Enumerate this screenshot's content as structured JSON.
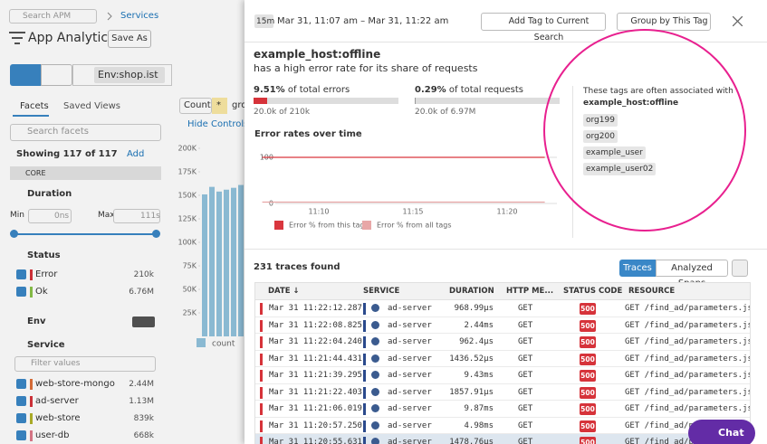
{
  "header": {
    "search_placeholder": "Search APM",
    "breadcrumb": "Services",
    "title": "App Analytics",
    "save_as": "Save As"
  },
  "query": "Env:shop.ist",
  "sidebar": {
    "tabs": [
      "Facets",
      "Saved Views"
    ],
    "search_placeholder": "Search facets",
    "showing": "Showing 117 of 117",
    "add": "Add",
    "core": "CORE",
    "duration": {
      "title": "Duration",
      "min_label": "Min",
      "min_value": "0ns",
      "max_label": "Max",
      "max_value": "111s"
    },
    "status": {
      "title": "Status",
      "items": [
        {
          "label": "Error",
          "count": "210k",
          "color": "#d6333a"
        },
        {
          "label": "Ok",
          "count": "6.76M",
          "color": "#8bc34a"
        }
      ]
    },
    "env": {
      "title": "Env"
    },
    "service": {
      "title": "Service",
      "filter_placeholder": "Filter values",
      "items": [
        {
          "label": "web-store-mongo",
          "count": "2.44M",
          "color": "#e0713a"
        },
        {
          "label": "ad-server",
          "count": "1.13M",
          "color": "#d6333a"
        },
        {
          "label": "web-store",
          "count": "839k",
          "color": "#b3b42a"
        },
        {
          "label": "user-db",
          "count": "668k",
          "color": "#e07b8c"
        }
      ]
    }
  },
  "controls": {
    "measure": "Count",
    "star": "*",
    "group": "gro",
    "hide_controls": "Hide Controls"
  },
  "chart_data": [
    {
      "type": "bar",
      "ylim": [
        0,
        200000
      ],
      "yticks": [
        {
          "value": 25000,
          "label": "25K"
        },
        {
          "value": 50000,
          "label": "50K"
        },
        {
          "value": 75000,
          "label": "75K"
        },
        {
          "value": 100000,
          "label": "100K"
        },
        {
          "value": 125000,
          "label": "125K"
        },
        {
          "value": 150000,
          "label": "150K"
        },
        {
          "value": 175000,
          "label": "175K"
        },
        {
          "value": 200000,
          "label": "200K"
        }
      ],
      "series": [
        {
          "name": "count",
          "color": "#92c3de",
          "values": [
            151000,
            159000,
            154000,
            156000,
            158000,
            161000,
            162000
          ]
        }
      ]
    },
    {
      "type": "line",
      "title": "Error rates over time",
      "x": [
        "11:07",
        "11:08",
        "11:09",
        "11:10",
        "11:11",
        "11:12",
        "11:13",
        "11:14",
        "11:15",
        "11:16",
        "11:17",
        "11:18",
        "11:19",
        "11:20",
        "11:21",
        "11:22"
      ],
      "xticks": [
        "11:10",
        "11:15",
        "11:20"
      ],
      "ylim": [
        0,
        100
      ],
      "yticks": [
        0,
        100
      ],
      "series": [
        {
          "name": "Error % from this tag",
          "color": "#d9363e",
          "values": [
            100,
            100,
            100,
            100,
            100,
            100,
            100,
            100,
            100,
            100,
            100,
            100,
            100,
            100,
            100,
            100
          ]
        },
        {
          "name": "Error % from all tags",
          "color": "#e8a7a7",
          "values": [
            3,
            3,
            3,
            3,
            3,
            3,
            3,
            3,
            3,
            3,
            3,
            3,
            3,
            3,
            3,
            3
          ]
        }
      ]
    }
  ],
  "panel": {
    "time_badge": "15m",
    "time_range": "Mar 31, 11:07 am – Mar 31, 11:22 am",
    "add_tag": "Add Tag to Current Search",
    "group_by": "Group by This Tag",
    "tag": "example_host:offline",
    "subtitle": "has a high error rate for its share of requests",
    "stats": [
      {
        "percent": 9.51,
        "percent_label": "9.51%",
        "label": "of total errors",
        "detail": "20.0k of 210k",
        "color": "#d6333a"
      },
      {
        "percent": 0.29,
        "percent_label": "0.29%",
        "label": "of total requests",
        "detail": "20.0k of 6.97M",
        "color": "#999999"
      }
    ],
    "associated": {
      "intro": "These tags are often associated with",
      "tag": "example_host:offline",
      "tags": [
        "org199",
        "org200",
        "example_user",
        "example_user02"
      ]
    },
    "traces_found": "231 traces found",
    "tabs": [
      "Traces",
      "Analyzed Spans"
    ],
    "table": {
      "columns": [
        "DATE ↓",
        "SERVICE",
        "DURATION",
        "HTTP ME...",
        "STATUS CODE",
        "RESOURCE"
      ],
      "rows": [
        [
          "Mar 31 11:22:12.287",
          "ad-server",
          "968.99μs",
          "GET",
          "500",
          "GET /find_ad/parameters.json"
        ],
        [
          "Mar 31 11:22:08.825",
          "ad-server",
          "2.44ms",
          "GET",
          "500",
          "GET /find_ad/parameters.json"
        ],
        [
          "Mar 31 11:22:04.240",
          "ad-server",
          "962.4μs",
          "GET",
          "500",
          "GET /find_ad/parameters.json"
        ],
        [
          "Mar 31 11:21:44.431",
          "ad-server",
          "1436.52μs",
          "GET",
          "500",
          "GET /find_ad/parameters.json"
        ],
        [
          "Mar 31 11:21:39.295",
          "ad-server",
          "9.43ms",
          "GET",
          "500",
          "GET /find_ad/parameters.json"
        ],
        [
          "Mar 31 11:21:22.403",
          "ad-server",
          "1857.91μs",
          "GET",
          "500",
          "GET /find_ad/parameters.json"
        ],
        [
          "Mar 31 11:21:06.019",
          "ad-server",
          "9.87ms",
          "GET",
          "500",
          "GET /find_ad/parameters.json"
        ],
        [
          "Mar 31 11:20:57.250",
          "ad-server",
          "4.98ms",
          "GET",
          "500",
          "GET /find_ad/parameters.json"
        ],
        [
          "Mar 31 11:20:55.631",
          "ad-server",
          "1478.76μs",
          "GET",
          "500",
          "GET /find_ad/parameters.json"
        ]
      ]
    }
  },
  "chat": "Chat"
}
